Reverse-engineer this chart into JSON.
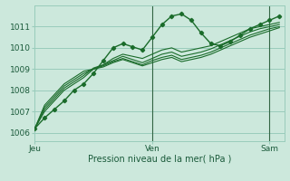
{
  "bg_color": "#cce8dc",
  "grid_color": "#99ccbb",
  "line_color": "#1a6b2a",
  "xlabel": "Pression niveau de la mer( hPa )",
  "xtick_labels": [
    "Jeu",
    "Ven",
    "Sam"
  ],
  "xtick_positions": [
    0,
    24,
    48
  ],
  "ytick_positions": [
    1006,
    1007,
    1008,
    1009,
    1010,
    1011
  ],
  "ylim": [
    1005.6,
    1012.0
  ],
  "xlim": [
    0,
    51
  ],
  "series": [
    [
      1006.2,
      1006.7,
      1007.1,
      1007.5,
      1008.0,
      1008.3,
      1008.8,
      1009.4,
      1010.0,
      1010.2,
      1010.05,
      1009.9,
      1010.5,
      1011.1,
      1011.5,
      1011.6,
      1011.3,
      1010.7,
      1010.2,
      1010.1,
      1010.3,
      1010.6,
      1010.9,
      1011.1,
      1011.3,
      1011.5
    ],
    [
      1006.2,
      1007.0,
      1007.5,
      1008.0,
      1008.3,
      1008.6,
      1009.0,
      1009.2,
      1009.5,
      1009.7,
      1009.6,
      1009.5,
      1009.7,
      1009.9,
      1010.0,
      1009.8,
      1009.9,
      1010.0,
      1010.1,
      1010.3,
      1010.5,
      1010.7,
      1010.9,
      1011.0,
      1011.1,
      1011.2
    ],
    [
      1006.2,
      1007.1,
      1007.6,
      1008.1,
      1008.4,
      1008.7,
      1009.05,
      1009.2,
      1009.4,
      1009.6,
      1009.45,
      1009.3,
      1009.5,
      1009.7,
      1009.8,
      1009.6,
      1009.7,
      1009.8,
      1009.95,
      1010.15,
      1010.35,
      1010.55,
      1010.75,
      1010.9,
      1011.0,
      1011.1
    ],
    [
      1006.2,
      1007.2,
      1007.7,
      1008.2,
      1008.5,
      1008.8,
      1009.0,
      1009.15,
      1009.35,
      1009.5,
      1009.35,
      1009.2,
      1009.4,
      1009.55,
      1009.65,
      1009.45,
      1009.55,
      1009.65,
      1009.8,
      1010.0,
      1010.2,
      1010.4,
      1010.6,
      1010.75,
      1010.9,
      1011.0
    ],
    [
      1006.2,
      1007.3,
      1007.8,
      1008.3,
      1008.6,
      1008.9,
      1009.0,
      1009.1,
      1009.3,
      1009.45,
      1009.3,
      1009.15,
      1009.3,
      1009.45,
      1009.55,
      1009.35,
      1009.45,
      1009.55,
      1009.7,
      1009.9,
      1010.1,
      1010.3,
      1010.5,
      1010.65,
      1010.8,
      1010.95
    ]
  ],
  "vline_positions": [
    24,
    48
  ],
  "vline_color": "#336644"
}
